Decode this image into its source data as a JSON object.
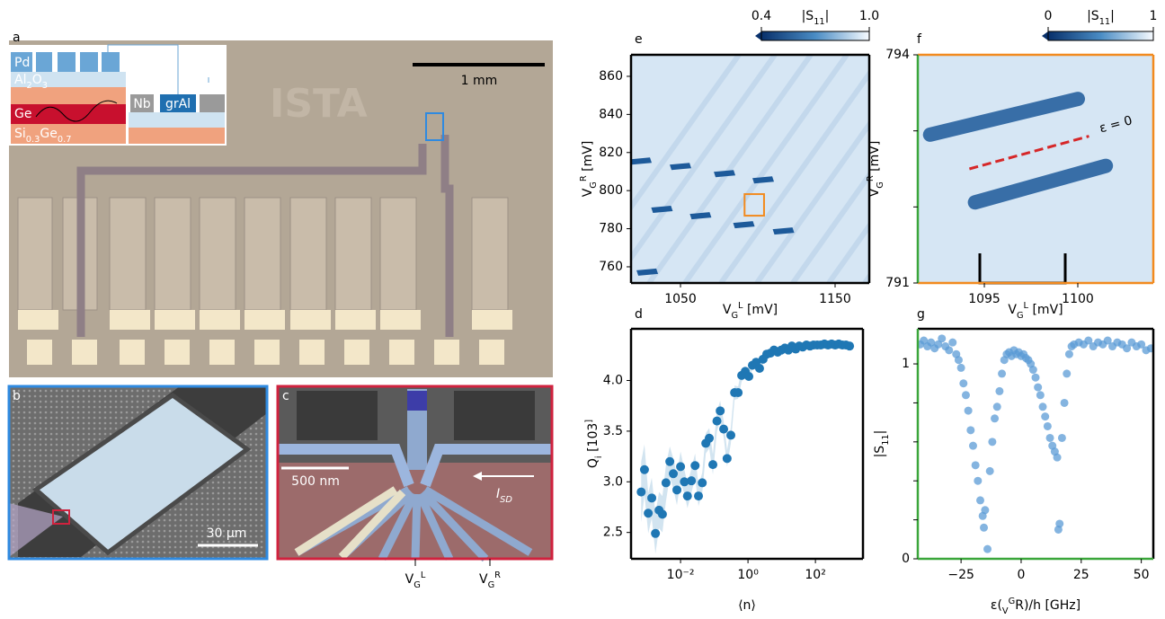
{
  "panels": {
    "a": {
      "label": "a",
      "scale_bar": "1 mm",
      "watermark": "ISTA",
      "layers": [
        "Pd",
        "Al2O3",
        "Ge",
        "Si0.3Ge0.7"
      ],
      "materials": [
        "Nb",
        "grAl"
      ]
    },
    "b": {
      "label": "b",
      "scale_bar": "30 μm"
    },
    "c": {
      "label": "c",
      "scale_bar": "500 nm",
      "current": "ISD",
      "gates": [
        "VGL",
        "VGR"
      ]
    }
  },
  "chart_data": [
    {
      "type": "heatmap",
      "label": "e",
      "xlabel": "VGL [mV]",
      "ylabel": "VGR [mV]",
      "xlim": [
        1018.0,
        1172.1
      ],
      "ylim": [
        751.5,
        871.3
      ],
      "xticks": [
        1050,
        1150
      ],
      "yticks": [
        760,
        780,
        800,
        820,
        840,
        860
      ],
      "colorbar": {
        "label": "|S11|",
        "ticks": [
          0.4,
          {
            "value": 1.0,
            "label": "1.0"
          }
        ]
      },
      "x": [
        1024.4,
        1050,
        1078.5,
        1103.5,
        1038,
        1063,
        1091,
        1116.6,
        1028.5
      ],
      "y": [
        815.5,
        812.7,
        808.9,
        805.6,
        790.2,
        786.8,
        782.1,
        778.8,
        757.2
      ],
      "color": "#1d5a9a"
    },
    {
      "type": "heatmap",
      "label": "f",
      "xlabel": "VGL [mV]",
      "ylabel": "VGR [mV]",
      "xlim": [
        1091.44,
        1104.04
      ],
      "ylim": [
        791,
        794
      ],
      "xticks": [
        1095,
        1100
      ],
      "yticks": [
        791,
        794
      ],
      "yminor": [
        792,
        793
      ],
      "colorbar": {
        "label": "|S11|",
        "ticks": [
          0,
          1
        ]
      },
      "bands": [
        {
          "x": [
            1092.1,
            1100.0
          ],
          "y": [
            792.95,
            793.42
          ]
        },
        {
          "x": [
            1094.5,
            1101.5
          ],
          "y": [
            792.06,
            792.54
          ]
        }
      ],
      "detuning_line": {
        "x": [
          1094.2,
          1100.6
        ],
        "y": [
          792.5,
          792.93
        ]
      },
      "annotation": "ε = 0",
      "color": "#1d5a9a"
    },
    {
      "type": "scatter",
      "label": "d",
      "xlabel": "⟨n⟩",
      "ylabel": "Qi [103]",
      "xscale": "log",
      "xlim": [
        0.00034,
        2570
      ],
      "ylim": [
        2.24,
        4.51
      ],
      "xticks": [
        {
          "value": 0.01,
          "label": "10⁻²"
        },
        {
          "value": 1,
          "label": "10⁰"
        },
        {
          "value": 100,
          "label": "10²"
        }
      ],
      "yticks": [
        2.5,
        {
          "value": 3.0,
          "label": "3.0"
        },
        3.5,
        {
          "value": 4.0,
          "label": "4.0"
        }
      ],
      "color": "#1f77b4",
      "x": [
        0.00068,
        0.00085,
        0.0011,
        0.0014,
        0.0018,
        0.0023,
        0.0029,
        0.0037,
        0.0048,
        0.0061,
        0.0078,
        0.01,
        0.013,
        0.016,
        0.021,
        0.027,
        0.034,
        0.044,
        0.056,
        0.071,
        0.091,
        0.12,
        0.15,
        0.19,
        0.24,
        0.31,
        0.4,
        0.51,
        0.65,
        0.83,
        1.06,
        1.35,
        1.74,
        2.2,
        2.8,
        3.6,
        4.6,
        5.9,
        7.6,
        9.7,
        12.4,
        15.8,
        20,
        26,
        33,
        42,
        54,
        69,
        88,
        113,
        144,
        185,
        236,
        302,
        385,
        492,
        630,
        805,
        1030
      ],
      "values": [
        2.9,
        3.12,
        2.69,
        2.84,
        2.49,
        2.72,
        2.68,
        2.99,
        3.2,
        3.08,
        2.92,
        3.15,
        3.0,
        2.86,
        3.01,
        3.16,
        2.86,
        2.99,
        3.38,
        3.43,
        3.17,
        3.6,
        3.7,
        3.52,
        3.23,
        3.46,
        3.88,
        3.88,
        4.05,
        4.09,
        4.04,
        4.15,
        4.18,
        4.12,
        4.21,
        4.26,
        4.27,
        4.3,
        4.28,
        4.3,
        4.32,
        4.3,
        4.34,
        4.31,
        4.34,
        4.33,
        4.35,
        4.34,
        4.35,
        4.35,
        4.35,
        4.36,
        4.35,
        4.36,
        4.35,
        4.36,
        4.35,
        4.35,
        4.34
      ],
      "errors": [
        0.3,
        0.25,
        0.2,
        0.2,
        0.2,
        0.18,
        0.18,
        0.18,
        0.15,
        0.15,
        0.15,
        0.15,
        0.12,
        0.12,
        0.12,
        0.12,
        0.1,
        0.1,
        0.1,
        0.1,
        0.1,
        0.1,
        0.1,
        0.08,
        0.08,
        0.08,
        0.07,
        0.06,
        0.06,
        0.05,
        0.04,
        0.04,
        0.04,
        0.04,
        0.04,
        0.04,
        0.04,
        0.04,
        0.04,
        0.04,
        0.04,
        0.04,
        0.04,
        0.04,
        0.04,
        0.04,
        0.04,
        0.04,
        0.04,
        0.04,
        0.04,
        0.04,
        0.04,
        0.04,
        0.04,
        0.04,
        0.04,
        0.04,
        0.04
      ]
    },
    {
      "type": "scatter",
      "label": "g",
      "xlabel": "ε(VGR)/h [GHz]",
      "ylabel": "|S11|",
      "xlim": [
        -43,
        55
      ],
      "ylim": [
        0,
        1.18
      ],
      "xticks": [
        {
          "value": -25,
          "label": "−25"
        },
        0,
        25,
        50
      ],
      "yticks": [
        0,
        1
      ],
      "yminor": [
        0.2,
        0.4,
        0.6,
        0.8
      ],
      "color": "#5b9bd5",
      "x": [
        -42,
        -40.5,
        -39,
        -37.5,
        -36,
        -34.5,
        -33,
        -31.5,
        -30,
        -28.5,
        -27,
        -26,
        -25,
        -24,
        -23,
        -22,
        -21,
        -20,
        -19,
        -18,
        -17,
        -16,
        -15.5,
        -15,
        -14,
        -13,
        -12,
        -11,
        -10,
        -9,
        -8,
        -7,
        -6,
        -5,
        -4,
        -3,
        -2,
        -1,
        0,
        1,
        2,
        3,
        4,
        5,
        6,
        7,
        8,
        9,
        10,
        11,
        12,
        13,
        14,
        15,
        15.5,
        16,
        17,
        18,
        19,
        20,
        21,
        22,
        24,
        26,
        28,
        30,
        32,
        34,
        36,
        38,
        40,
        42,
        44,
        46,
        48,
        50,
        52,
        54
      ],
      "values": [
        1.1,
        1.12,
        1.09,
        1.11,
        1.08,
        1.1,
        1.13,
        1.09,
        1.07,
        1.11,
        1.05,
        1.02,
        0.98,
        0.9,
        0.84,
        0.76,
        0.66,
        0.58,
        0.48,
        0.4,
        0.3,
        0.22,
        0.16,
        0.25,
        0.05,
        0.45,
        0.6,
        0.72,
        0.78,
        0.86,
        0.95,
        1.02,
        1.05,
        1.06,
        1.04,
        1.07,
        1.05,
        1.06,
        1.04,
        1.05,
        1.03,
        1.02,
        1.0,
        0.97,
        0.93,
        0.88,
        0.84,
        0.78,
        0.73,
        0.68,
        0.62,
        0.58,
        0.55,
        0.52,
        0.15,
        0.18,
        0.62,
        0.8,
        0.95,
        1.05,
        1.09,
        1.1,
        1.11,
        1.1,
        1.12,
        1.09,
        1.11,
        1.1,
        1.12,
        1.09,
        1.11,
        1.1,
        1.08,
        1.11,
        1.09,
        1.1,
        1.07,
        1.08
      ]
    }
  ]
}
